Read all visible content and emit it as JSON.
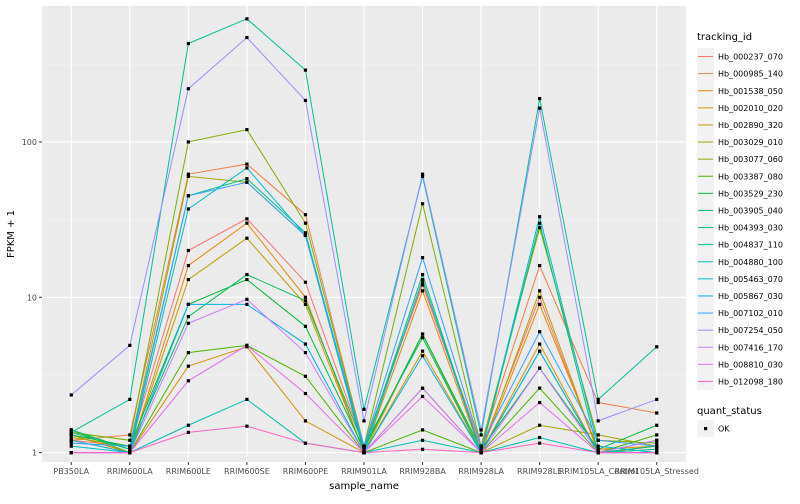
{
  "chart_data": {
    "type": "line",
    "title": "",
    "xlabel": "sample_name",
    "ylabel": "FPKM + 1",
    "yscale": "log10",
    "ylim": [
      0.87,
      750
    ],
    "yticks": [
      1,
      10,
      100
    ],
    "ytick_labels": [
      "1",
      "10",
      "100"
    ],
    "grid": true,
    "legend_position": "right",
    "categories": [
      "PB350LA",
      "RRIM600LA",
      "RRIM600LE",
      "RRIM600SE",
      "RRIM600PE",
      "RRIM901LA",
      "RRIM928BA",
      "RRIM928LA",
      "RRIM928LE",
      "RRIM105LA_Control",
      "RRIM105LA_Stressed"
    ],
    "legend_title": "tracking_id",
    "series": [
      {
        "name": "Hb_000237_070",
        "color": "#F8766D",
        "values": [
          1.2,
          1.1,
          20,
          32,
          12.5,
          1.1,
          12,
          1.05,
          10,
          1.0,
          1.0
        ]
      },
      {
        "name": "Hb_000985_140",
        "color": "#EF7F49",
        "values": [
          1.2,
          1.3,
          62,
          72,
          34,
          1.1,
          12.5,
          1.1,
          16,
          2.1,
          1.8
        ]
      },
      {
        "name": "Hb_001538_050",
        "color": "#E38900",
        "values": [
          1.3,
          1.0,
          16,
          30,
          10,
          1.0,
          11,
          1.0,
          9,
          1.05,
          1.1
        ]
      },
      {
        "name": "Hb_002010_020",
        "color": "#D39200",
        "values": [
          1.2,
          1.0,
          3.6,
          4.8,
          1.6,
          1.0,
          4.5,
          1.0,
          5,
          1.0,
          1.05
        ]
      },
      {
        "name": "Hb_002890_320",
        "color": "#C09B00",
        "values": [
          1.3,
          1.0,
          13,
          24,
          9,
          1.0,
          5.8,
          1.0,
          11,
          1.0,
          1.1
        ]
      },
      {
        "name": "Hb_003029_010",
        "color": "#A9A400",
        "values": [
          1.25,
          1.1,
          60,
          55,
          25,
          1.0,
          2.6,
          1.0,
          1.5,
          1.3,
          1.1
        ]
      },
      {
        "name": "Hb_003077_060",
        "color": "#7CAE00",
        "values": [
          1.35,
          1.2,
          100,
          120,
          30,
          1.1,
          40,
          1.1,
          28,
          1.2,
          1.15
        ]
      },
      {
        "name": "Hb_003387_080",
        "color": "#4AB400",
        "values": [
          1.4,
          1.0,
          4.4,
          4.9,
          3.1,
          1.0,
          1.4,
          1.0,
          2.6,
          1.0,
          1.3
        ]
      },
      {
        "name": "Hb_003529_230",
        "color": "#00BA38",
        "values": [
          1.3,
          1.1,
          9,
          13,
          6.5,
          1.05,
          5.8,
          1.05,
          3.5,
          1.05,
          1.5
        ]
      },
      {
        "name": "Hb_003905_040",
        "color": "#00BD5C",
        "values": [
          1.4,
          1.05,
          7.5,
          14,
          9.5,
          1.1,
          5.5,
          1.0,
          4.5,
          1.0,
          1.2
        ]
      },
      {
        "name": "Hb_004393_030",
        "color": "#00BF7D",
        "values": [
          1.35,
          1.05,
          45,
          58,
          26,
          1.05,
          14,
          1.0,
          30,
          1.0,
          1.1
        ]
      },
      {
        "name": "Hb_004837_110",
        "color": "#00C19A",
        "values": [
          1.35,
          2.2,
          430,
          620,
          290,
          1.9,
          60,
          1.3,
          190,
          2.2,
          4.8
        ]
      },
      {
        "name": "Hb_004880_100",
        "color": "#00BFB4",
        "values": [
          1.0,
          1.0,
          1.5,
          2.2,
          1.15,
          1.0,
          1.2,
          1.0,
          1.25,
          1.0,
          1.05
        ]
      },
      {
        "name": "Hb_005463_070",
        "color": "#00BBCD",
        "values": [
          1.1,
          1.0,
          37,
          68,
          25,
          1.0,
          13,
          1.0,
          33,
          1.1,
          1.0
        ]
      },
      {
        "name": "Hb_005867_030",
        "color": "#00B2E2",
        "values": [
          1.2,
          1.0,
          9,
          9,
          5,
          1.0,
          4.2,
          1.0,
          4.5,
          1.0,
          1.0
        ]
      },
      {
        "name": "Hb_007102_010",
        "color": "#35A2FF",
        "values": [
          1.15,
          1.1,
          45,
          55,
          25,
          1.1,
          18,
          1.1,
          6,
          1.2,
          1.1
        ]
      },
      {
        "name": "Hb_007254_050",
        "color": "#9590FF",
        "values": [
          2.35,
          4.9,
          220,
          470,
          185,
          1.6,
          62,
          1.4,
          165,
          1.6,
          2.2
        ]
      },
      {
        "name": "Hb_007416_170",
        "color": "#C77CFF",
        "values": [
          1.0,
          1.0,
          6.8,
          9.7,
          4.4,
          1.0,
          2.6,
          1.0,
          3.5,
          1.0,
          1.2
        ]
      },
      {
        "name": "Hb_008810_030",
        "color": "#E76BF3",
        "values": [
          1.0,
          1.0,
          2.9,
          4.9,
          2.4,
          1.0,
          2.3,
          1.0,
          2.1,
          1.0,
          1.0
        ]
      },
      {
        "name": "Hb_012098_180",
        "color": "#FF61C3",
        "values": [
          1.0,
          1.0,
          1.35,
          1.48,
          1.15,
          1.0,
          1.05,
          1.0,
          1.15,
          1.0,
          1.0
        ]
      }
    ],
    "shape_legend": {
      "title": "quant_status",
      "items": [
        {
          "label": "OK",
          "symbol": "square"
        }
      ]
    }
  }
}
